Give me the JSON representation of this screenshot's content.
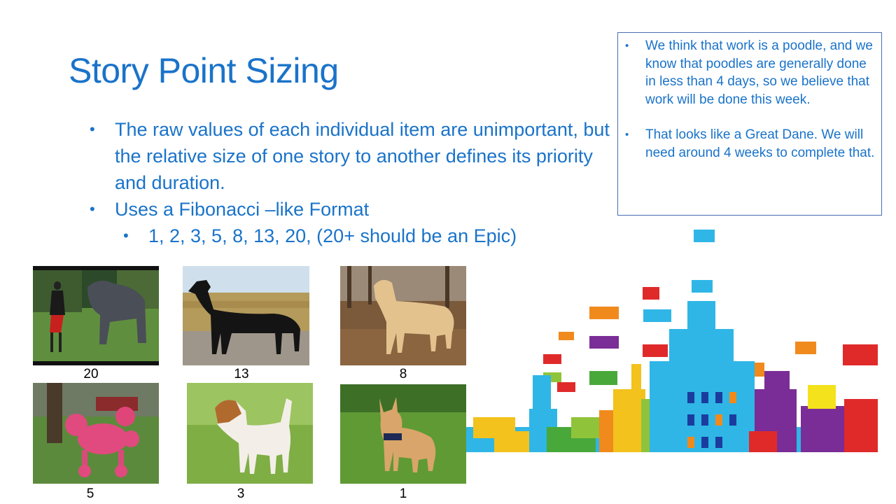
{
  "slide": {
    "title": "Story Point Sizing",
    "bullets": [
      "The raw values of each individual item are unimportant, but the relative size of one story to another defines its priority and duration.",
      "Uses a Fibonacci –like Format"
    ],
    "sub_bullet": "1, 2, 3, 5, 8, 13, 20, (20+ should be an Epic)"
  },
  "callout": {
    "items": [
      "We think that work is a poodle, and we know that poodles are generally done in less than 4 days, so we believe that work will be done this week.",
      "That looks like a Great Dane. We will need around 4 weeks to complete that."
    ]
  },
  "dogs": [
    {
      "label": "20",
      "image": "mastiff-photo"
    },
    {
      "label": "13",
      "image": "great-dane-photo"
    },
    {
      "label": "8",
      "image": "golden-retriever-photo"
    },
    {
      "label": "5",
      "image": "pink-poodle-photo"
    },
    {
      "label": "3",
      "image": "jack-russell-photo"
    },
    {
      "label": "1",
      "image": "chihuahua-photo"
    }
  ],
  "colors": {
    "accent": "#1a73c9",
    "border": "#4a6fb3"
  }
}
